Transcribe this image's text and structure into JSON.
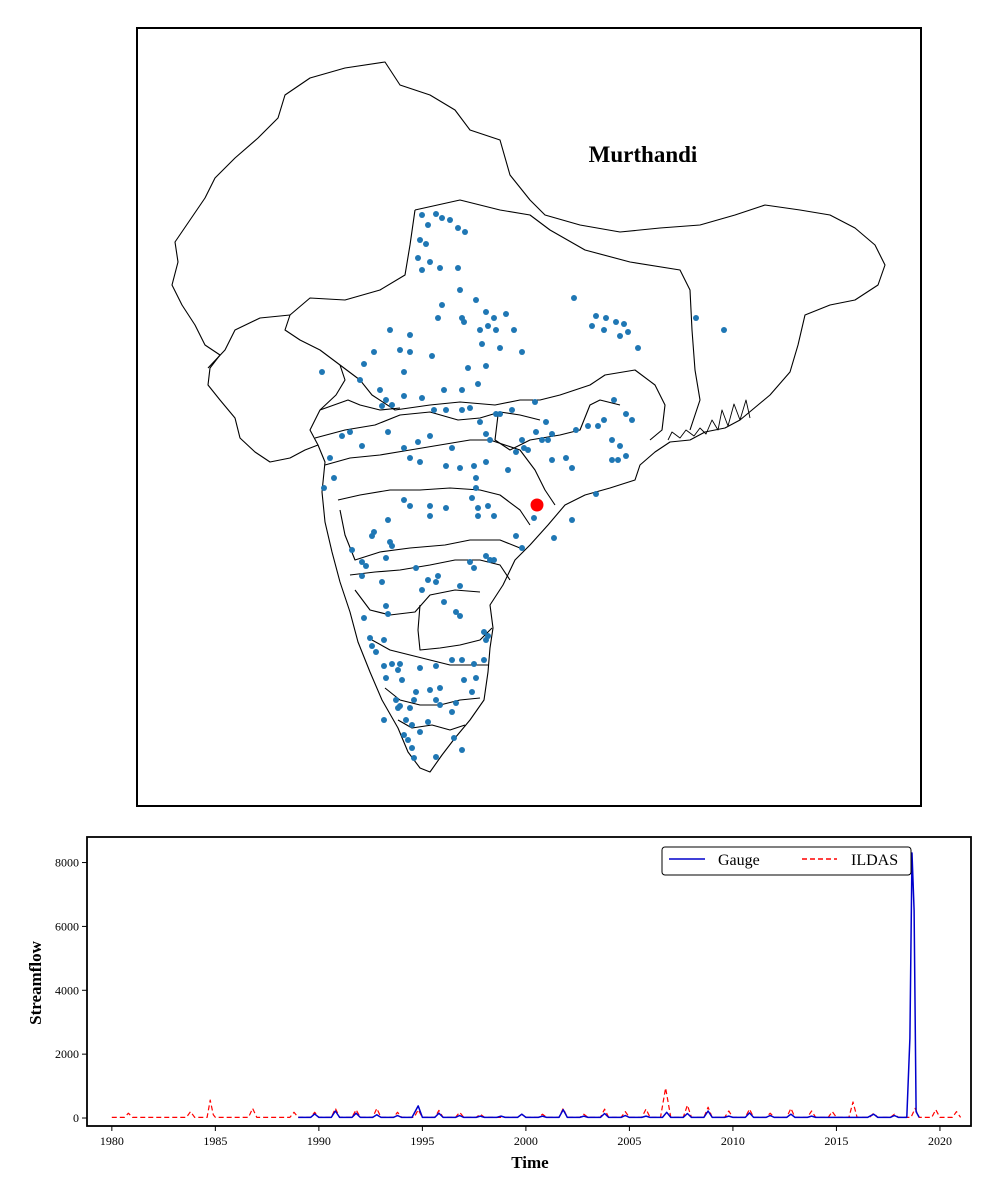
{
  "map": {
    "title": "Murthandi",
    "station_color": "#1f77b4",
    "highlight_color": "#ff0000",
    "outline_color": "#000000"
  },
  "chart_data": {
    "type": "line",
    "xlabel": "Time",
    "ylabel": "Streamflow",
    "xlim": [
      1978.8,
      2021.5
    ],
    "ylim": [
      -250,
      8800
    ],
    "xticks": [
      1980,
      1985,
      1990,
      1995,
      2000,
      2005,
      2010,
      2015,
      2020
    ],
    "yticks": [
      0,
      2000,
      4000,
      6000,
      8000
    ],
    "legend": {
      "placement": "top-right",
      "ncol": 2
    },
    "series": [
      {
        "name": "Gauge",
        "color": "#0000cc",
        "style": "solid",
        "x": [
          1989.0,
          1989.6,
          1989.8,
          1990.0,
          1990.6,
          1990.8,
          1991.0,
          1991.6,
          1991.8,
          1992.0,
          1992.6,
          1992.8,
          1993.0,
          1993.6,
          1993.8,
          1994.0,
          1994.5,
          1994.8,
          1995.0,
          1995.6,
          1995.8,
          1996.0,
          1996.6,
          1996.8,
          1997.0,
          1997.6,
          1997.8,
          1998.0,
          1998.6,
          1998.8,
          1999.0,
          1999.6,
          1999.8,
          2000.0,
          2000.6,
          2000.8,
          2001.0,
          2001.6,
          2001.8,
          2002.0,
          2002.6,
          2002.8,
          2003.0,
          2003.6,
          2003.8,
          2004.0,
          2004.6,
          2004.8,
          2005.0,
          2005.6,
          2005.8,
          2006.0,
          2006.6,
          2006.8,
          2007.0,
          2007.6,
          2007.8,
          2008.0,
          2008.6,
          2008.8,
          2009.0,
          2009.6,
          2009.8,
          2010.0,
          2010.6,
          2010.8,
          2011.0,
          2011.6,
          2011.8,
          2012.0,
          2012.6,
          2012.8,
          2013.0,
          2013.6,
          2013.8,
          2014.0,
          2016.5,
          2016.8,
          2017.0,
          2017.6,
          2017.8,
          2018.0,
          2018.4,
          2018.55,
          2018.65,
          2018.75,
          2018.85,
          2019.0
        ],
        "y": [
          20,
          20,
          130,
          20,
          20,
          220,
          20,
          20,
          150,
          20,
          20,
          100,
          20,
          20,
          80,
          20,
          20,
          380,
          20,
          20,
          150,
          20,
          20,
          80,
          20,
          20,
          60,
          20,
          20,
          60,
          20,
          20,
          120,
          20,
          20,
          60,
          20,
          20,
          260,
          20,
          20,
          60,
          20,
          20,
          140,
          20,
          20,
          80,
          20,
          20,
          60,
          20,
          20,
          180,
          20,
          20,
          140,
          20,
          20,
          220,
          20,
          20,
          60,
          20,
          20,
          160,
          20,
          20,
          80,
          20,
          20,
          120,
          20,
          20,
          60,
          20,
          20,
          120,
          20,
          20,
          80,
          20,
          20,
          2500,
          8300,
          6500,
          200,
          20
        ]
      },
      {
        "name": "ILDAS",
        "color": "#ff0000",
        "style": "dashed",
        "x": [
          1980.0,
          1980.6,
          1980.8,
          1981.0,
          1983.6,
          1983.8,
          1984.0,
          1984.6,
          1984.75,
          1984.9,
          1985.0,
          1986.6,
          1986.8,
          1987.0,
          1988.6,
          1988.8,
          1989.0,
          1989.6,
          1989.8,
          1990.0,
          1990.6,
          1990.8,
          1991.0,
          1991.6,
          1991.8,
          1992.0,
          1992.6,
          1992.8,
          1993.0,
          1993.6,
          1993.8,
          1994.0,
          1994.6,
          1994.8,
          1995.0,
          1995.6,
          1995.8,
          1996.0,
          1996.6,
          1996.8,
          1997.0,
          1997.6,
          1997.8,
          1998.0,
          1999.6,
          1999.8,
          2000.0,
          2000.6,
          2000.8,
          2001.0,
          2001.6,
          2001.8,
          2002.0,
          2002.6,
          2002.8,
          2003.0,
          2003.6,
          2003.8,
          2004.0,
          2004.6,
          2004.8,
          2005.0,
          2005.6,
          2005.8,
          2006.0,
          2006.5,
          2006.75,
          2007.0,
          2007.3,
          2007.6,
          2007.8,
          2008.0,
          2008.6,
          2008.8,
          2009.0,
          2009.6,
          2009.8,
          2010.0,
          2010.6,
          2010.8,
          2011.0,
          2011.6,
          2011.8,
          2012.0,
          2012.6,
          2012.8,
          2013.0,
          2013.6,
          2013.8,
          2014.0,
          2014.6,
          2014.8,
          2015.0,
          2015.6,
          2015.8,
          2016.0,
          2016.6,
          2016.8,
          2017.0,
          2017.6,
          2017.8,
          2018.0,
          2018.6,
          2018.8,
          2019.0,
          2019.6,
          2019.8,
          2020.0,
          2020.6,
          2020.8,
          2021.0
        ],
        "y": [
          20,
          20,
          150,
          20,
          20,
          200,
          20,
          20,
          560,
          100,
          20,
          20,
          300,
          20,
          20,
          180,
          20,
          20,
          180,
          20,
          20,
          300,
          20,
          20,
          260,
          20,
          20,
          300,
          20,
          20,
          180,
          20,
          20,
          260,
          20,
          20,
          240,
          20,
          20,
          180,
          20,
          20,
          120,
          20,
          20,
          120,
          20,
          20,
          120,
          20,
          20,
          300,
          20,
          20,
          120,
          20,
          20,
          280,
          20,
          20,
          200,
          20,
          20,
          280,
          20,
          20,
          940,
          20,
          20,
          20,
          400,
          20,
          20,
          340,
          20,
          20,
          220,
          20,
          20,
          280,
          20,
          20,
          150,
          20,
          20,
          300,
          20,
          20,
          220,
          20,
          20,
          200,
          20,
          20,
          500,
          20,
          20,
          150,
          20,
          20,
          120,
          20,
          20,
          300,
          20,
          20,
          260,
          20,
          20,
          200,
          20
        ]
      }
    ]
  }
}
